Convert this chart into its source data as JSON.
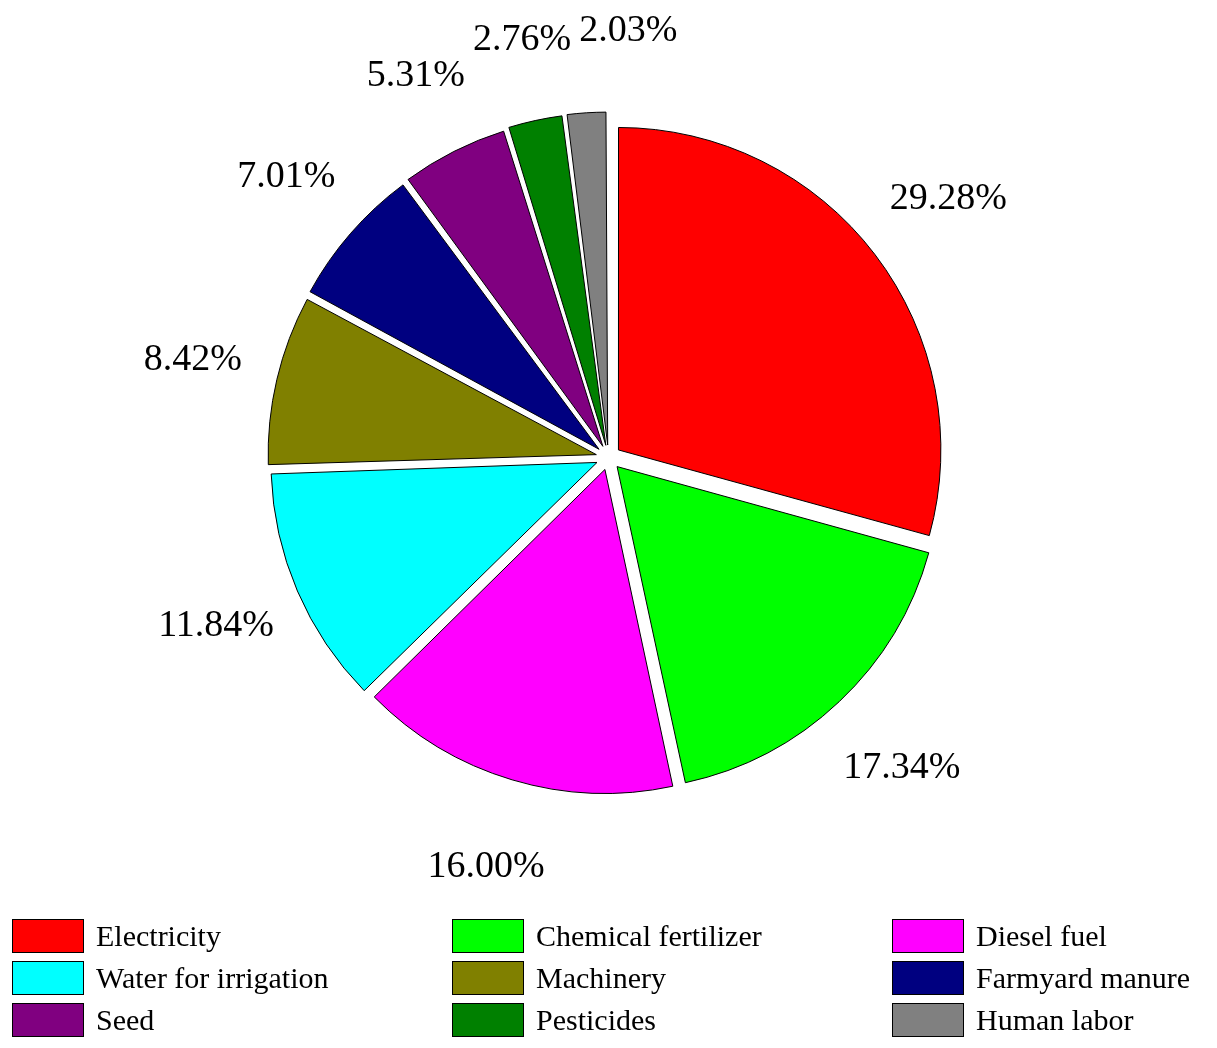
{
  "chart_data": {
    "type": "pie",
    "categories": [
      "Electricity",
      "Chemical fertilizer",
      "Diesel fuel",
      "Water for irrigation",
      "Machinery",
      "Farmyard manure",
      "Seed",
      "Pesticides",
      "Human labor"
    ],
    "values": [
      29.28,
      17.34,
      16.0,
      11.84,
      8.42,
      7.01,
      5.31,
      2.76,
      2.03
    ],
    "value_labels": [
      "29.28%",
      "17.34%",
      "16.00%",
      "11.84%",
      "8.42%",
      "7.01%",
      "5.31%",
      "2.76%",
      "2.03%"
    ],
    "colors": [
      "#ff0000",
      "#00ff00",
      "#ff00ff",
      "#00ffff",
      "#808000",
      "#000080",
      "#800080",
      "#008000",
      "#808080"
    ],
    "legend": "bottom"
  }
}
